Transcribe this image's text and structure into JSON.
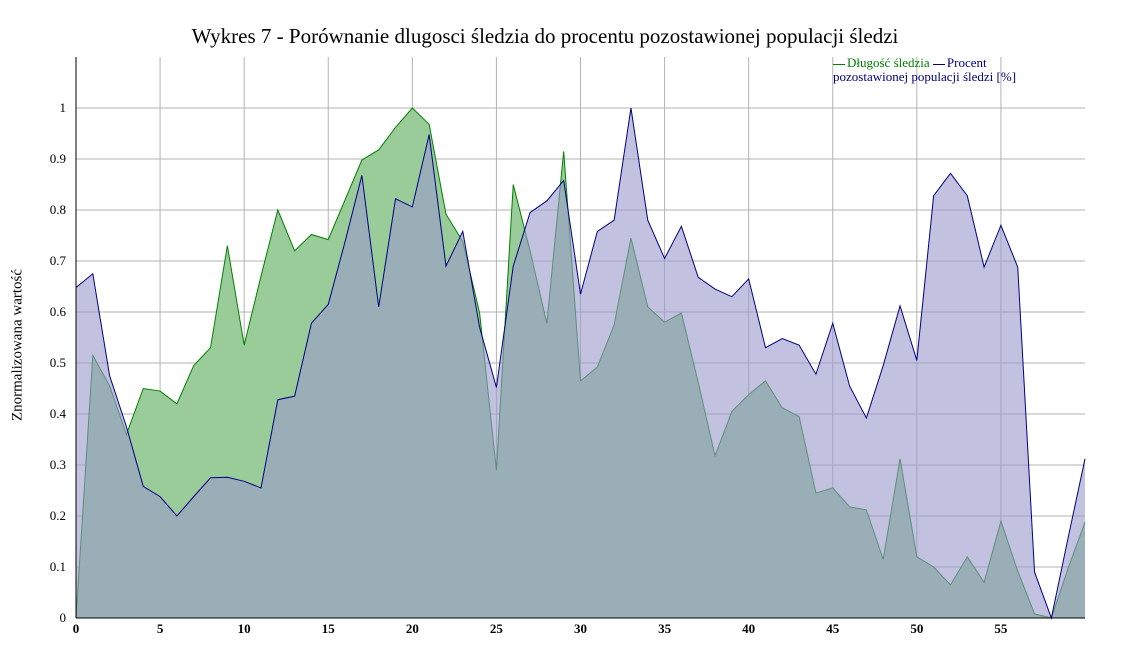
{
  "chart_data": {
    "type": "area",
    "title": "Wykres 7 - Porównanie dlugosci śledzia do procentu pozostawionej populacji śledzi",
    "xlabel": "",
    "ylabel": "Znormalizowana wartość",
    "xlim": [
      0,
      60
    ],
    "ylim": [
      0,
      1.1
    ],
    "x_ticks": [
      0,
      5,
      10,
      15,
      20,
      25,
      30,
      35,
      40,
      45,
      50,
      55
    ],
    "y_ticks": [
      0,
      0.1,
      0.2,
      0.3,
      0.4,
      0.5,
      0.6,
      0.7,
      0.8,
      0.9,
      1
    ],
    "y_tick_labels": [
      "0",
      "0.1",
      "0.2",
      "0.3",
      "0.4",
      "0.5",
      "0.6",
      "0.7",
      "0.8",
      "0.9",
      "1"
    ],
    "grid": true,
    "legend_position": "top-right",
    "x": [
      0,
      1,
      2,
      3,
      4,
      5,
      6,
      7,
      8,
      9,
      10,
      11,
      12,
      13,
      14,
      15,
      16,
      17,
      18,
      19,
      20,
      21,
      22,
      23,
      24,
      25,
      26,
      27,
      28,
      29,
      30,
      31,
      32,
      33,
      34,
      35,
      36,
      37,
      38,
      39,
      40,
      41,
      42,
      43,
      44,
      45,
      46,
      47,
      48,
      49,
      50,
      51,
      52,
      53,
      54,
      55,
      56,
      57,
      58,
      59,
      60
    ],
    "series": [
      {
        "name": "Długość śledzia",
        "color": "#008000",
        "fill": "#99cc99",
        "values": [
          0.0,
          0.515,
          0.455,
          0.36,
          0.45,
          0.445,
          0.42,
          0.495,
          0.53,
          0.73,
          0.535,
          0.67,
          0.8,
          0.72,
          0.752,
          0.742,
          0.82,
          0.898,
          0.918,
          0.962,
          1.0,
          0.968,
          0.792,
          0.738,
          0.598,
          0.29,
          0.85,
          0.72,
          0.578,
          0.915,
          0.465,
          0.492,
          0.575,
          0.745,
          0.61,
          0.58,
          0.598,
          0.462,
          0.318,
          0.405,
          0.438,
          0.465,
          0.412,
          0.395,
          0.245,
          0.255,
          0.218,
          0.212,
          0.115,
          0.312,
          0.12,
          0.1,
          0.065,
          0.12,
          0.07,
          0.19,
          0.092,
          0.008,
          0.0,
          0.098,
          0.188
        ]
      },
      {
        "name": "Procent pozostawionej populacji śledzi [%]",
        "color": "#000080",
        "fill": "#9999cc",
        "values": [
          0.648,
          0.675,
          0.475,
          0.375,
          0.258,
          0.238,
          0.2,
          0.238,
          0.275,
          0.276,
          0.268,
          0.255,
          0.428,
          0.435,
          0.578,
          0.615,
          0.738,
          0.868,
          0.61,
          0.822,
          0.806,
          0.948,
          0.69,
          0.758,
          0.57,
          0.452,
          0.69,
          0.795,
          0.818,
          0.858,
          0.635,
          0.758,
          0.78,
          1.0,
          0.78,
          0.705,
          0.768,
          0.668,
          0.645,
          0.63,
          0.665,
          0.53,
          0.548,
          0.535,
          0.478,
          0.578,
          0.455,
          0.392,
          0.495,
          0.612,
          0.505,
          0.828,
          0.872,
          0.828,
          0.688,
          0.77,
          0.688,
          0.09,
          0.0,
          0.158,
          0.312
        ]
      }
    ]
  }
}
